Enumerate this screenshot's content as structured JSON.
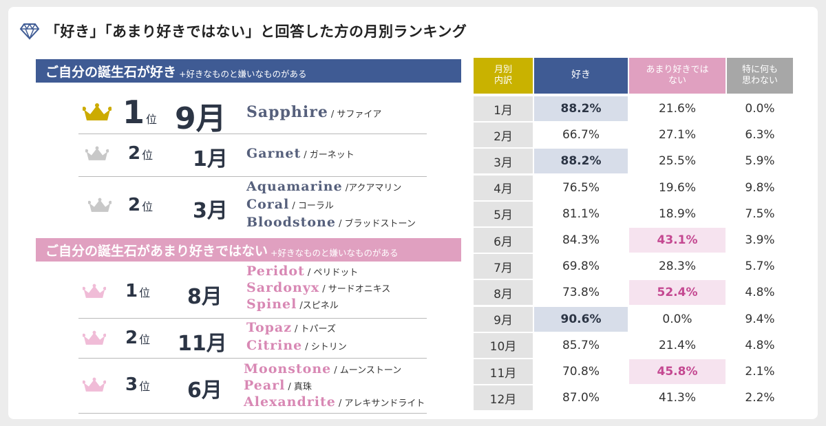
{
  "title": "「好き」「あまり好きではない」と回答した方の月別ランキング",
  "like_section": {
    "heading": "ご自分の誕生石が好き",
    "subheading": "+好きなものと嫌いなものがある",
    "ranks": [
      {
        "rank": "1",
        "suffix": "位",
        "month": "9月",
        "stones": [
          {
            "en": "Sapphire",
            "jp": "/ サファイア"
          }
        ]
      },
      {
        "rank": "2",
        "suffix": "位",
        "month": "1月",
        "stones": [
          {
            "en": "Garnet",
            "jp": "/ ガーネット"
          }
        ]
      },
      {
        "rank": "2",
        "suffix": "位",
        "month": "3月",
        "stones": [
          {
            "en": "Aquamarine",
            "jp": "/アクアマリン"
          },
          {
            "en": "Coral",
            "jp": "/ コーラル"
          },
          {
            "en": "Bloodstone",
            "jp": "/ ブラッドストーン"
          }
        ]
      }
    ]
  },
  "dislike_section": {
    "heading": "ご自分の誕生石があまり好きではない",
    "subheading": "+好きなものと嫌いなものがある",
    "ranks": [
      {
        "rank": "1",
        "suffix": "位",
        "month": "8月",
        "stones": [
          {
            "en": "Peridot",
            "jp": "/ ペリドット"
          },
          {
            "en": "Sardonyx",
            "jp": "/ サードオニキス"
          },
          {
            "en": "Spinel",
            "jp": "/スピネル"
          }
        ]
      },
      {
        "rank": "2",
        "suffix": "位",
        "month": "11月",
        "stones": [
          {
            "en": "Topaz",
            "jp": "/ トパーズ"
          },
          {
            "en": "Citrine",
            "jp": "/ シトリン"
          }
        ]
      },
      {
        "rank": "3",
        "suffix": "位",
        "month": "6月",
        "stones": [
          {
            "en": "Moonstone",
            "jp": "/ ムーンストーン"
          },
          {
            "en": "Pearl",
            "jp": "/ 真珠"
          },
          {
            "en": "Alexandrite",
            "jp": "/ アレキサンドライト"
          }
        ]
      }
    ]
  },
  "table": {
    "headers": [
      "月別\n内訳",
      "好き",
      "あまり好きでは\nない",
      "特に何も\n思わない"
    ],
    "rows": [
      {
        "month": "1月",
        "like": "88.2%",
        "dislike": "21.6%",
        "neutral": "0.0%",
        "hl": "like"
      },
      {
        "month": "2月",
        "like": "66.7%",
        "dislike": "27.1%",
        "neutral": "6.3%",
        "hl": ""
      },
      {
        "month": "3月",
        "like": "88.2%",
        "dislike": "25.5%",
        "neutral": "5.9%",
        "hl": "like"
      },
      {
        "month": "4月",
        "like": "76.5%",
        "dislike": "19.6%",
        "neutral": "9.8%",
        "hl": ""
      },
      {
        "month": "5月",
        "like": "81.1%",
        "dislike": "18.9%",
        "neutral": "7.5%",
        "hl": ""
      },
      {
        "month": "6月",
        "like": "84.3%",
        "dislike": "43.1%",
        "neutral": "3.9%",
        "hl": "dislike"
      },
      {
        "month": "7月",
        "like": "69.8%",
        "dislike": "28.3%",
        "neutral": "5.7%",
        "hl": ""
      },
      {
        "month": "8月",
        "like": "73.8%",
        "dislike": "52.4%",
        "neutral": "4.8%",
        "hl": "dislike"
      },
      {
        "month": "9月",
        "like": "90.6%",
        "dislike": "0.0%",
        "neutral": "9.4%",
        "hl": "like"
      },
      {
        "month": "10月",
        "like": "85.7%",
        "dislike": "21.4%",
        "neutral": "4.8%",
        "hl": ""
      },
      {
        "month": "11月",
        "like": "70.8%",
        "dislike": "45.8%",
        "neutral": "2.1%",
        "hl": "dislike"
      },
      {
        "month": "12月",
        "like": "87.0%",
        "dislike": "41.3%",
        "neutral": "2.2%",
        "hl": ""
      }
    ]
  },
  "colors": {
    "navy": "#3f5b94",
    "pink": "#e0a0c0",
    "gold": "#ccab00",
    "silver": "#c8c8c8",
    "light_pink": "#f0bcd7",
    "header_month": "#c9b200",
    "header_neutral": "#a7a7a7"
  }
}
